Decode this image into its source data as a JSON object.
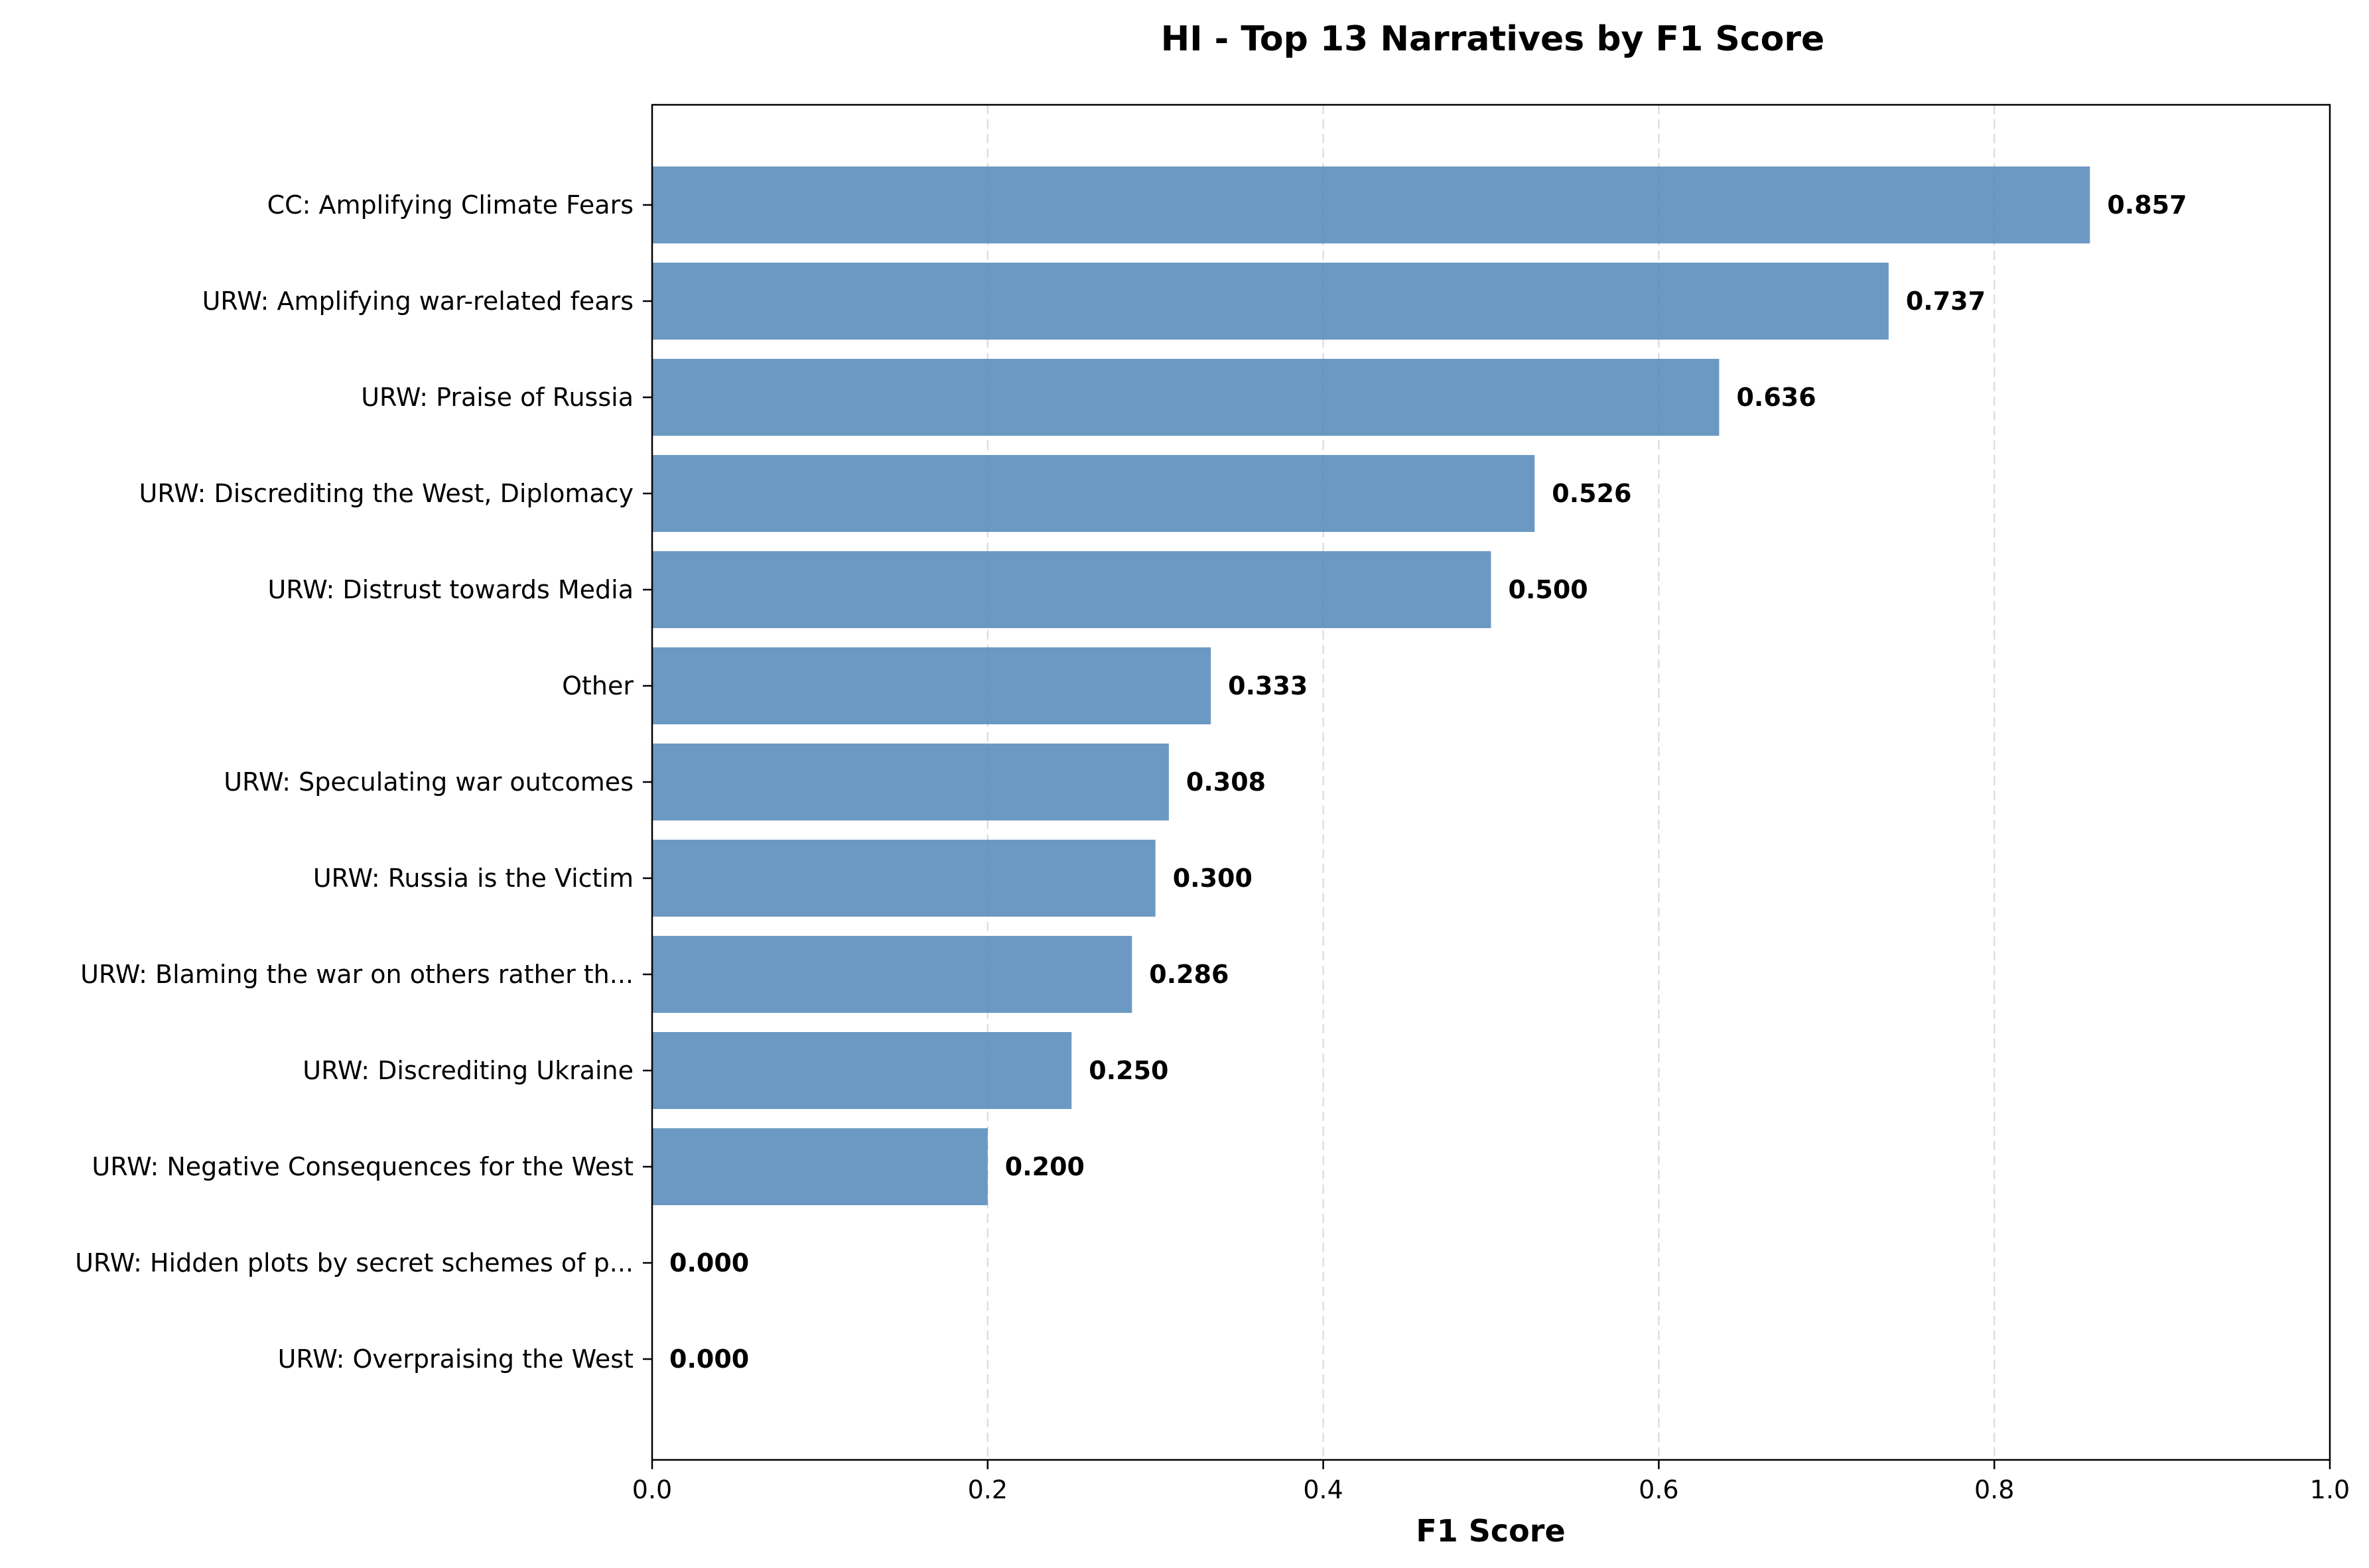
{
  "chart_data": {
    "type": "bar",
    "orientation": "horizontal",
    "title": "HI - Top 13 Narratives by F1 Score",
    "xlabel": "F1 Score",
    "ylabel": "",
    "xlim": [
      0.0,
      1.0
    ],
    "x_ticks": [
      "0.0",
      "0.2",
      "0.4",
      "0.6",
      "0.8",
      "1.0"
    ],
    "grid": "vertical dashed",
    "bar_color": "#4f86b8",
    "categories": [
      "CC: Amplifying Climate Fears",
      "URW: Amplifying war-related fears",
      "URW: Praise of Russia",
      "URW: Discrediting the West, Diplomacy",
      "URW: Distrust towards Media",
      "Other",
      "URW: Speculating war outcomes",
      "URW: Russia is the Victim",
      "URW: Blaming the war on others rather th...",
      "URW: Discrediting Ukraine",
      "URW: Negative Consequences for the West",
      "URW: Hidden plots by secret schemes of p...",
      "URW: Overpraising the West"
    ],
    "values": [
      0.857,
      0.737,
      0.636,
      0.526,
      0.5,
      0.333,
      0.308,
      0.3,
      0.286,
      0.25,
      0.2,
      0.0,
      0.0
    ],
    "value_labels": [
      "0.857",
      "0.737",
      "0.636",
      "0.526",
      "0.500",
      "0.333",
      "0.308",
      "0.300",
      "0.286",
      "0.250",
      "0.200",
      "0.000",
      "0.000"
    ]
  }
}
